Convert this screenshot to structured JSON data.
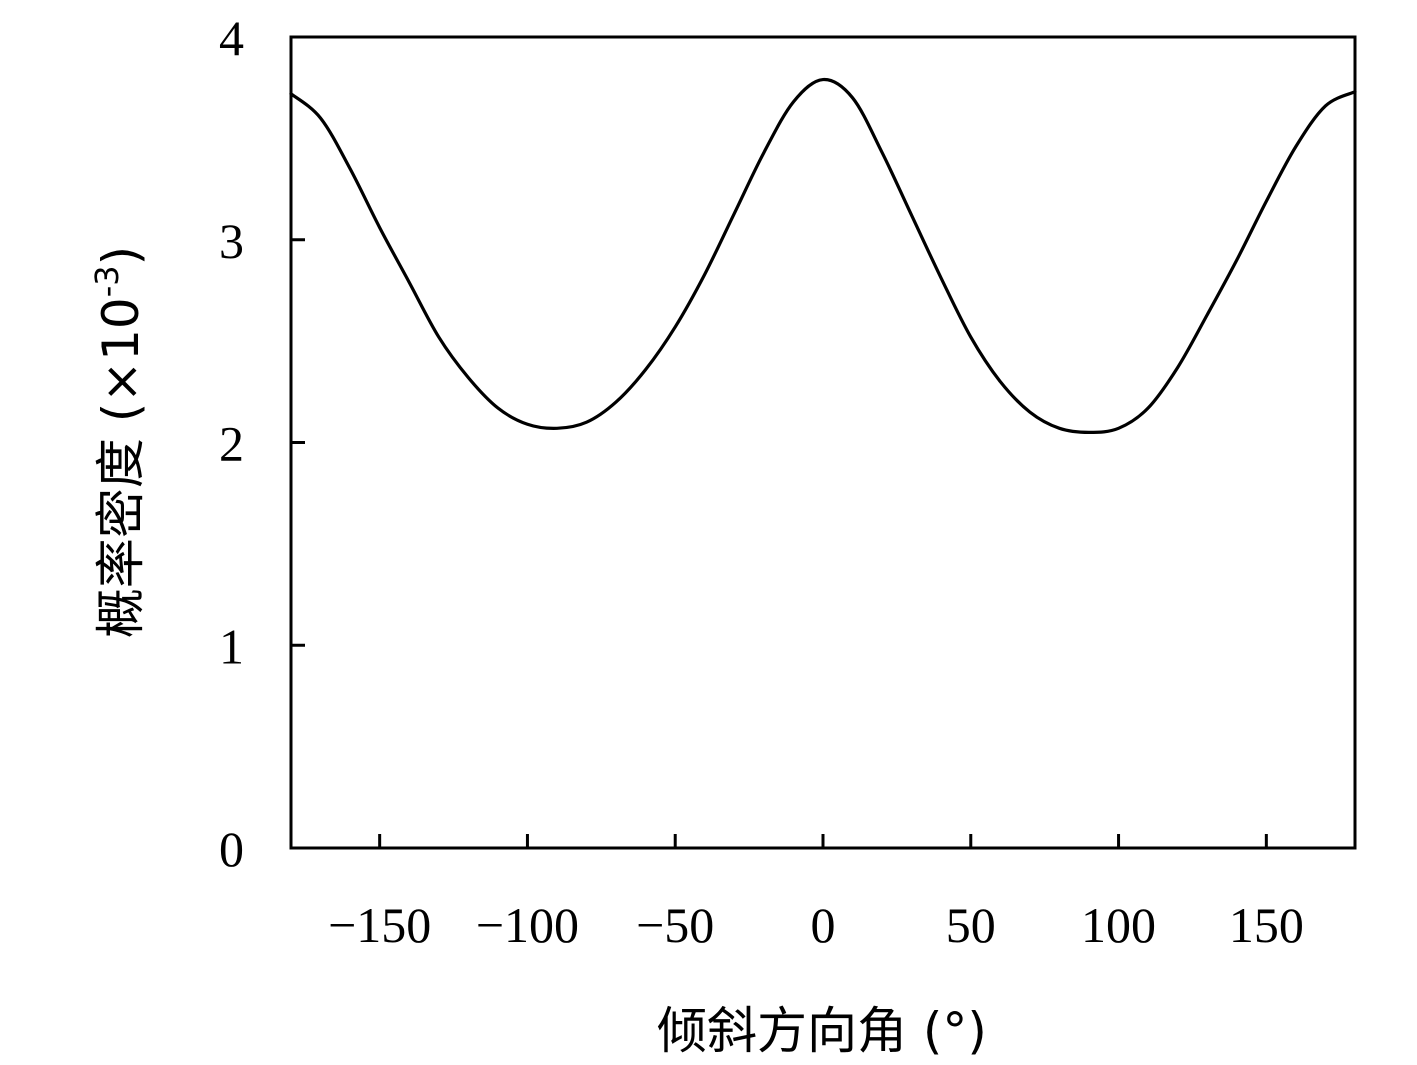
{
  "chart_data": {
    "type": "line",
    "title": "",
    "xlabel": "倾斜方向角 (°)",
    "ylabel": "概率密度 (×10",
    "ylabel_exponent": "-3",
    "ylabel_close": ")",
    "xlim": [
      -180,
      180
    ],
    "ylim": [
      0,
      4
    ],
    "xticks": [
      -150,
      -100,
      -50,
      0,
      50,
      100,
      150
    ],
    "xtick_labels": [
      "−150",
      "−100",
      "−50",
      "0",
      "50",
      "100",
      "150"
    ],
    "yticks": [
      0,
      1,
      2,
      3,
      4
    ],
    "ytick_labels": [
      "0",
      "1",
      "2",
      "3",
      "4"
    ],
    "grid": false,
    "line_color": "#000000",
    "series": [
      {
        "x": [
          -180,
          -170,
          -160,
          -150,
          -140,
          -130,
          -120,
          -110,
          -100,
          -90,
          -80,
          -70,
          -60,
          -50,
          -40,
          -30,
          -20,
          -10,
          0,
          10,
          20,
          30,
          40,
          50,
          60,
          70,
          80,
          90,
          100,
          110,
          120,
          130,
          140,
          150,
          160,
          170,
          180
        ],
        "values": [
          3.72,
          3.6,
          3.35,
          3.06,
          2.79,
          2.52,
          2.32,
          2.17,
          2.09,
          2.07,
          2.1,
          2.2,
          2.36,
          2.57,
          2.83,
          3.13,
          3.43,
          3.68,
          3.79,
          3.7,
          3.43,
          3.12,
          2.81,
          2.52,
          2.3,
          2.15,
          2.07,
          2.05,
          2.07,
          2.17,
          2.37,
          2.63,
          2.9,
          3.19,
          3.46,
          3.66,
          3.73
        ]
      }
    ]
  }
}
